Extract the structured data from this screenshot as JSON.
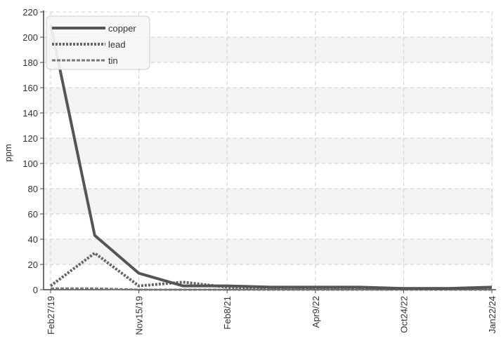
{
  "chart_data": {
    "type": "line",
    "ylabel": "ppm",
    "xlabel": "",
    "ylim": [
      0,
      220
    ],
    "yticks": [
      0,
      20,
      40,
      60,
      80,
      100,
      120,
      140,
      160,
      180,
      200,
      220
    ],
    "x_tick_labels": [
      "Feb27/19",
      "Nov15/19",
      "Feb8/21",
      "Apr9/22",
      "Oct24/22",
      "Jan22/24"
    ],
    "grid": true,
    "legend_position": "top-left",
    "series": [
      {
        "name": "copper",
        "color": "#555555",
        "style": "solid",
        "values": [
          210,
          43,
          13,
          3,
          3,
          2,
          2,
          2,
          1,
          1,
          2
        ]
      },
      {
        "name": "lead",
        "color": "#666666",
        "style": "dotted",
        "values": [
          3,
          29,
          3,
          6,
          2,
          1,
          1,
          1,
          1,
          1,
          1
        ]
      },
      {
        "name": "tin",
        "color": "#777777",
        "style": "dashed",
        "values": [
          1,
          1,
          0,
          0,
          0,
          0,
          0,
          0,
          0,
          0,
          0
        ]
      }
    ]
  }
}
